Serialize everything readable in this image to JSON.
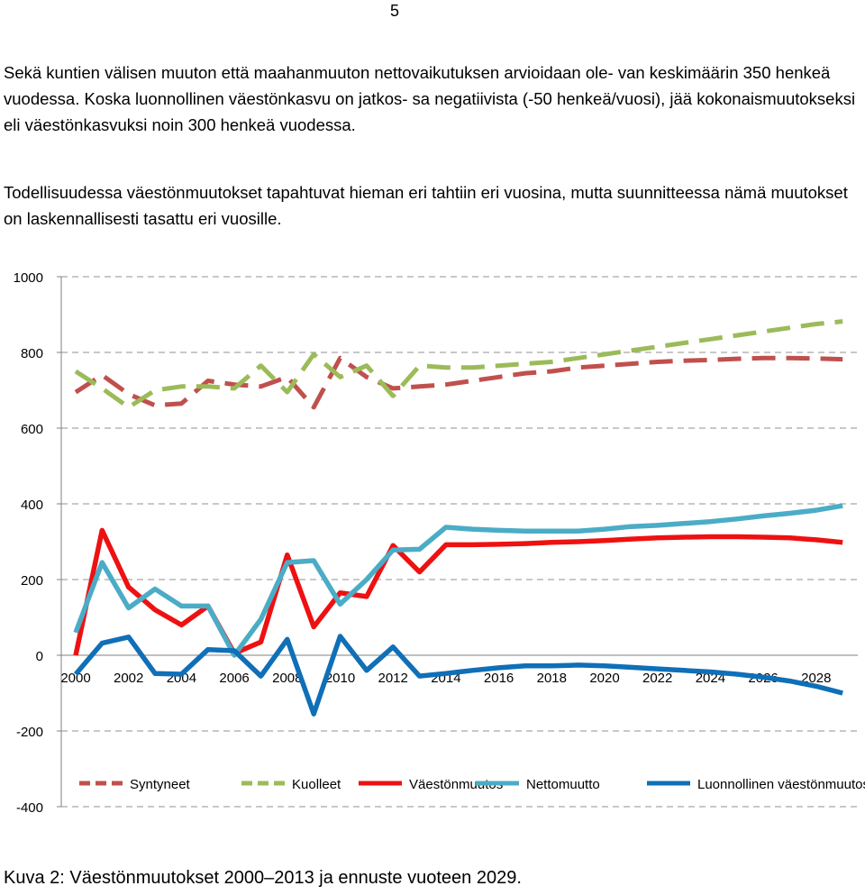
{
  "page_number": "5",
  "paragraphs": [
    "Sekä kuntien välisen muuton että maahanmuuton nettovaikutuksen arvioidaan ole- van keskimäärin 350 henkeä vuodessa. Koska luonnollinen väestönkasvu on jatkos- sa negatiivista (-50 henkeä/vuosi), jää kokonaismuutokseksi eli väestönkasvuksi noin 300 henkeä vuodessa.",
    "Todellisuudessa väestönmuutokset tapahtuvat hieman eri tahtiin eri vuosina, mutta suunnitteessa nämä muutokset on laskennallisesti tasattu eri vuosille."
  ],
  "chart_data": {
    "type": "line",
    "x": [
      2000,
      2001,
      2002,
      2003,
      2004,
      2005,
      2006,
      2007,
      2008,
      2009,
      2010,
      2011,
      2012,
      2013,
      2014,
      2015,
      2016,
      2017,
      2018,
      2019,
      2020,
      2021,
      2022,
      2023,
      2024,
      2025,
      2026,
      2027,
      2028,
      2029
    ],
    "x_tick_labels": [
      "2000",
      "2002",
      "2004",
      "2006",
      "2008",
      "2010",
      "2012",
      "2014",
      "2016",
      "2018",
      "2020",
      "2022",
      "2024",
      "2026",
      "2028"
    ],
    "ylim": [
      -400,
      1000
    ],
    "y_ticks": [
      -400,
      -200,
      0,
      200,
      400,
      600,
      800,
      1000
    ],
    "grid": "horizontal dashed",
    "legend_position": "bottom",
    "series": [
      {
        "name": "Syntyneet",
        "color": "#c0504d",
        "dash": true,
        "values": [
          695,
          740,
          690,
          660,
          665,
          725,
          715,
          710,
          735,
          655,
          785,
          735,
          705,
          710,
          715,
          725,
          735,
          745,
          750,
          760,
          765,
          770,
          775,
          778,
          780,
          783,
          785,
          785,
          784,
          782
        ]
      },
      {
        "name": "Kuolleet",
        "color": "#9bbb59",
        "dash": true,
        "values": [
          750,
          705,
          655,
          700,
          710,
          710,
          705,
          765,
          695,
          795,
          735,
          765,
          685,
          765,
          760,
          760,
          765,
          770,
          775,
          785,
          795,
          805,
          815,
          825,
          835,
          845,
          855,
          865,
          875,
          882
        ]
      },
      {
        "name": "Väestönmuutos",
        "color": "#ee1111",
        "dash": false,
        "values": [
          0,
          330,
          180,
          120,
          80,
          130,
          5,
          35,
          265,
          75,
          165,
          155,
          290,
          220,
          292,
          292,
          293,
          295,
          298,
          300,
          303,
          307,
          310,
          312,
          313,
          313,
          312,
          310,
          305,
          298
        ]
      },
      {
        "name": "Nettomuutto",
        "color": "#4bacc6",
        "dash": false,
        "values": [
          60,
          245,
          125,
          175,
          130,
          130,
          0,
          95,
          245,
          250,
          135,
          200,
          278,
          280,
          338,
          333,
          330,
          328,
          328,
          328,
          333,
          340,
          343,
          348,
          353,
          360,
          368,
          375,
          383,
          395
        ]
      },
      {
        "name": "Luonnollinen väestönmuutos",
        "color": "#0f6fb7",
        "dash": false,
        "values": [
          -50,
          32,
          48,
          -48,
          -50,
          15,
          12,
          -55,
          42,
          -155,
          50,
          -40,
          22,
          -55,
          -48,
          -40,
          -33,
          -28,
          -28,
          -26,
          -28,
          -32,
          -36,
          -40,
          -44,
          -50,
          -58,
          -68,
          -82,
          -100
        ]
      }
    ]
  },
  "caption": "Kuva 2: Väestönmuutokset 2000–2013 ja ennuste vuoteen 2029."
}
